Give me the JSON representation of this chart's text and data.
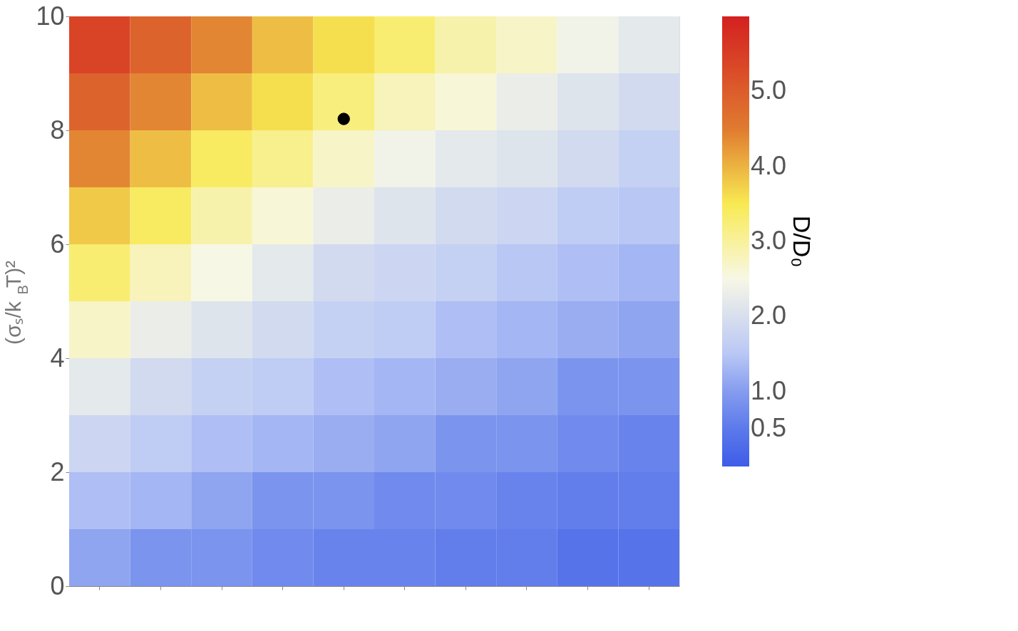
{
  "chart_data": {
    "type": "heatmap",
    "ylabel": "(σₛ/k$_{B}$T)²",
    "clabel": "D/D₀",
    "categories": [
      null,
      null,
      null,
      null,
      null,
      null,
      null,
      null,
      null,
      null
    ],
    "ylim": [
      0,
      10
    ],
    "yticks": [
      0,
      2,
      4,
      6,
      8,
      10
    ],
    "tick_labels": "y",
    "grid": false,
    "cells": [
      [
        5.4,
        4.9,
        4.4,
        3.9,
        3.6,
        3.3,
        2.9,
        2.7,
        2.4,
        2.2
      ],
      [
        4.9,
        4.4,
        3.9,
        3.6,
        3.2,
        2.8,
        2.6,
        2.3,
        2.1,
        1.9
      ],
      [
        4.4,
        3.9,
        3.4,
        3.1,
        2.7,
        2.4,
        2.2,
        2.1,
        1.9,
        1.7
      ],
      [
        3.8,
        3.4,
        2.9,
        2.6,
        2.3,
        2.1,
        1.9,
        1.8,
        1.6,
        1.5
      ],
      [
        3.3,
        2.8,
        2.5,
        2.2,
        1.9,
        1.8,
        1.7,
        1.5,
        1.4,
        1.3
      ],
      [
        2.7,
        2.3,
        2.1,
        1.9,
        1.7,
        1.6,
        1.4,
        1.3,
        1.2,
        1.1
      ],
      [
        2.2,
        1.9,
        1.7,
        1.6,
        1.4,
        1.3,
        1.2,
        1.1,
        0.9,
        0.9
      ],
      [
        1.8,
        1.6,
        1.4,
        1.3,
        1.2,
        1.1,
        0.9,
        0.9,
        0.8,
        0.7
      ],
      [
        1.4,
        1.3,
        1.1,
        0.9,
        0.9,
        0.8,
        0.8,
        0.7,
        0.6,
        0.6
      ],
      [
        1.1,
        0.9,
        0.9,
        0.8,
        0.7,
        0.7,
        0.6,
        0.6,
        0.4,
        0.4
      ]
    ],
    "clim": [
      0,
      6
    ],
    "cticks": [
      {
        "value": 0.5,
        "label": "0.5"
      },
      {
        "value": 1,
        "label": "1.0"
      },
      {
        "value": 2,
        "label": "2.0"
      },
      {
        "value": 3,
        "label": "3.0"
      },
      {
        "value": 4,
        "label": "4.0"
      },
      {
        "value": 5,
        "label": "5.0"
      }
    ],
    "colors": [
      "#3e5ce8",
      "#6b87ec",
      "#b9c7f5",
      "#f7f7e6",
      "#f8ea52",
      "#e07b30",
      "#d42020"
    ],
    "series": [
      {
        "type": "scatter",
        "color": "#000000",
        "values": [
          null,
          null,
          null,
          null,
          8.2,
          null,
          null,
          null,
          null,
          null
        ]
      }
    ]
  }
}
